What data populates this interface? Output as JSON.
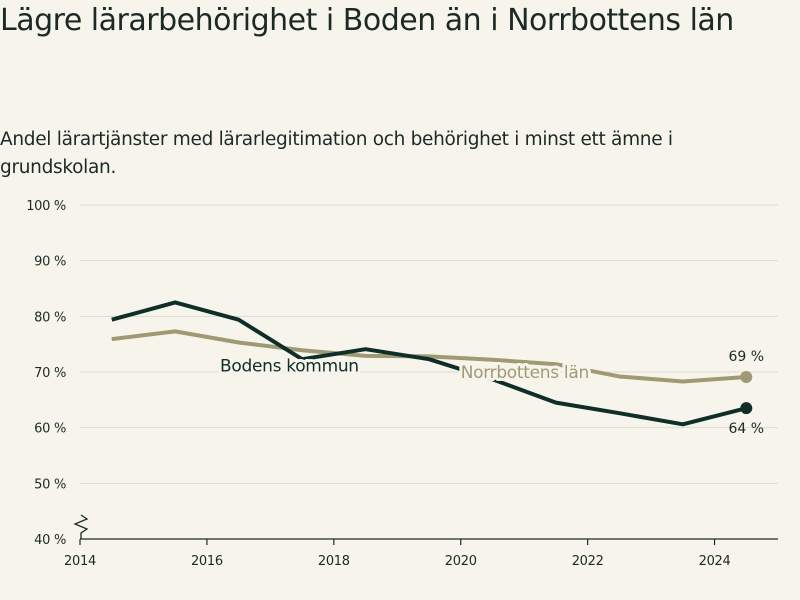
{
  "title": "Lägre lärarbehörighet i Boden än i Norrbottens län",
  "subtitle": "Andel lärartjänster med lärarlegitimation och behörighet i minst ett ämne i grundskolan.",
  "colors": {
    "background": "#f7f4ec",
    "boden": "#0f2e27",
    "norrbotten": "#9f9a73",
    "grid": "#dcdad3",
    "axis": "#1c2a26"
  },
  "chart_data": {
    "type": "line",
    "x": [
      2014.5,
      2015.5,
      2016.5,
      2017.5,
      2018.5,
      2019.5,
      2020.5,
      2021.5,
      2022.5,
      2023.5,
      2024.5
    ],
    "series": [
      {
        "name": "Bodens kommun",
        "values": [
          79.4,
          82.5,
          79.4,
          72.3,
          74.1,
          72.3,
          68.7,
          64.5,
          62.6,
          60.6,
          63.5
        ],
        "end_label": "64 %"
      },
      {
        "name": "Norrbottens län",
        "values": [
          75.9,
          77.3,
          75.3,
          73.9,
          72.9,
          72.8,
          72.2,
          71.4,
          69.2,
          68.3,
          69.1
        ],
        "end_label": "69 %"
      }
    ],
    "xlim": [
      2014,
      2025
    ],
    "ylim": [
      40,
      100
    ],
    "x_ticks": [
      2014,
      2016,
      2018,
      2020,
      2022,
      2024
    ],
    "x_tick_labels": [
      "2014",
      "2016",
      "2018",
      "2020",
      "2022",
      "2024"
    ],
    "y_ticks": [
      40,
      50,
      60,
      70,
      80,
      90,
      100
    ],
    "y_tick_labels": [
      "40 %",
      "50 %",
      "60 %",
      "70 %",
      "80 %",
      "90 %",
      "100 %"
    ],
    "y_axis_break": true,
    "grid": "horizontal",
    "legend": "inline labels"
  }
}
